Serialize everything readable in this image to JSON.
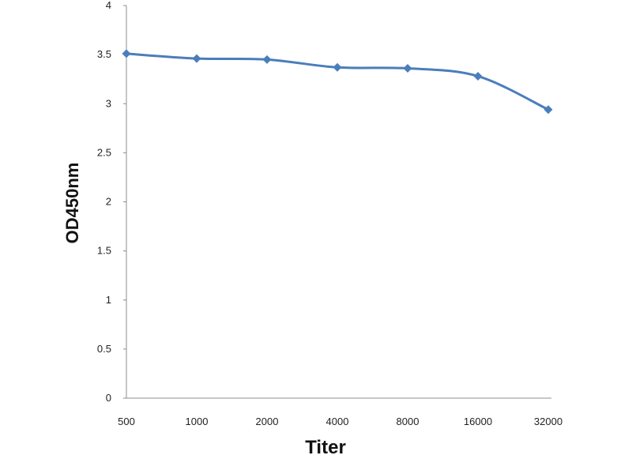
{
  "chart_data": {
    "type": "line",
    "categories": [
      "500",
      "1000",
      "2000",
      "4000",
      "8000",
      "16000",
      "32000"
    ],
    "series": [
      {
        "values": [
          3.51,
          3.46,
          3.45,
          3.37,
          3.36,
          3.28,
          2.94
        ]
      }
    ],
    "xlabel": "Titer",
    "ylabel": "OD450nm",
    "ylim": [
      0,
      4
    ],
    "yticks": [
      "0",
      "0.5",
      "1",
      "1.5",
      "2",
      "2.5",
      "3",
      "3.5",
      "4"
    ],
    "grid": false,
    "colors": {
      "series": "#4a7ebb",
      "axis": "#8c8c8c"
    },
    "marker": "diamond"
  }
}
